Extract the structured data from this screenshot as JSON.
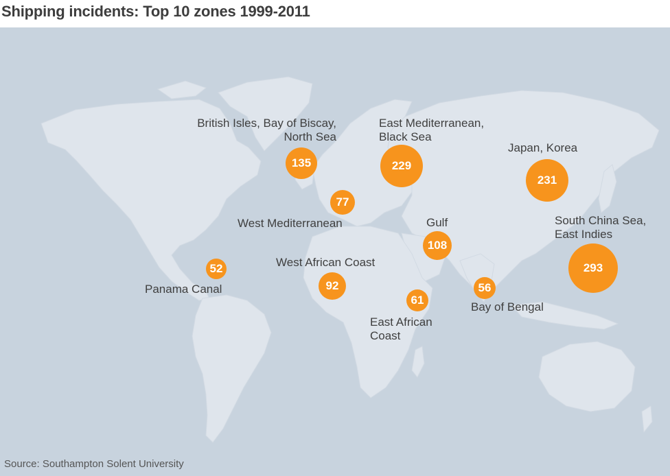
{
  "title": "Shipping incidents: Top 10 zones 1999-2011",
  "source": "Source: Southampton Solent University",
  "colors": {
    "ocean": "#c8d3de",
    "land": "#dfe5ec",
    "bubble": "#f7941d"
  },
  "zones": [
    {
      "id": "british-isles",
      "label_line1": "British Isles, Bay of Biscay,",
      "label_line2": "North Sea",
      "incidents": 135
    },
    {
      "id": "east-med",
      "label_line1": "East Mediterranean,",
      "label_line2": "Black Sea",
      "incidents": 229
    },
    {
      "id": "japan-korea",
      "label_line1": "Japan, Korea",
      "label_line2": "",
      "incidents": 231
    },
    {
      "id": "west-med",
      "label_line1": "West Mediterranean",
      "label_line2": "",
      "incidents": 77
    },
    {
      "id": "gulf",
      "label_line1": "Gulf",
      "label_line2": "",
      "incidents": 108
    },
    {
      "id": "south-china-sea",
      "label_line1": "South China Sea,",
      "label_line2": "East Indies",
      "incidents": 293
    },
    {
      "id": "west-africa",
      "label_line1": "West African Coast",
      "label_line2": "",
      "incidents": 92
    },
    {
      "id": "panama",
      "label_line1": "Panama Canal",
      "label_line2": "",
      "incidents": 52
    },
    {
      "id": "east-africa",
      "label_line1": "East African",
      "label_line2": "Coast",
      "incidents": 61
    },
    {
      "id": "bay-of-bengal",
      "label_line1": "Bay of Bengal",
      "label_line2": "",
      "incidents": 56
    }
  ]
}
